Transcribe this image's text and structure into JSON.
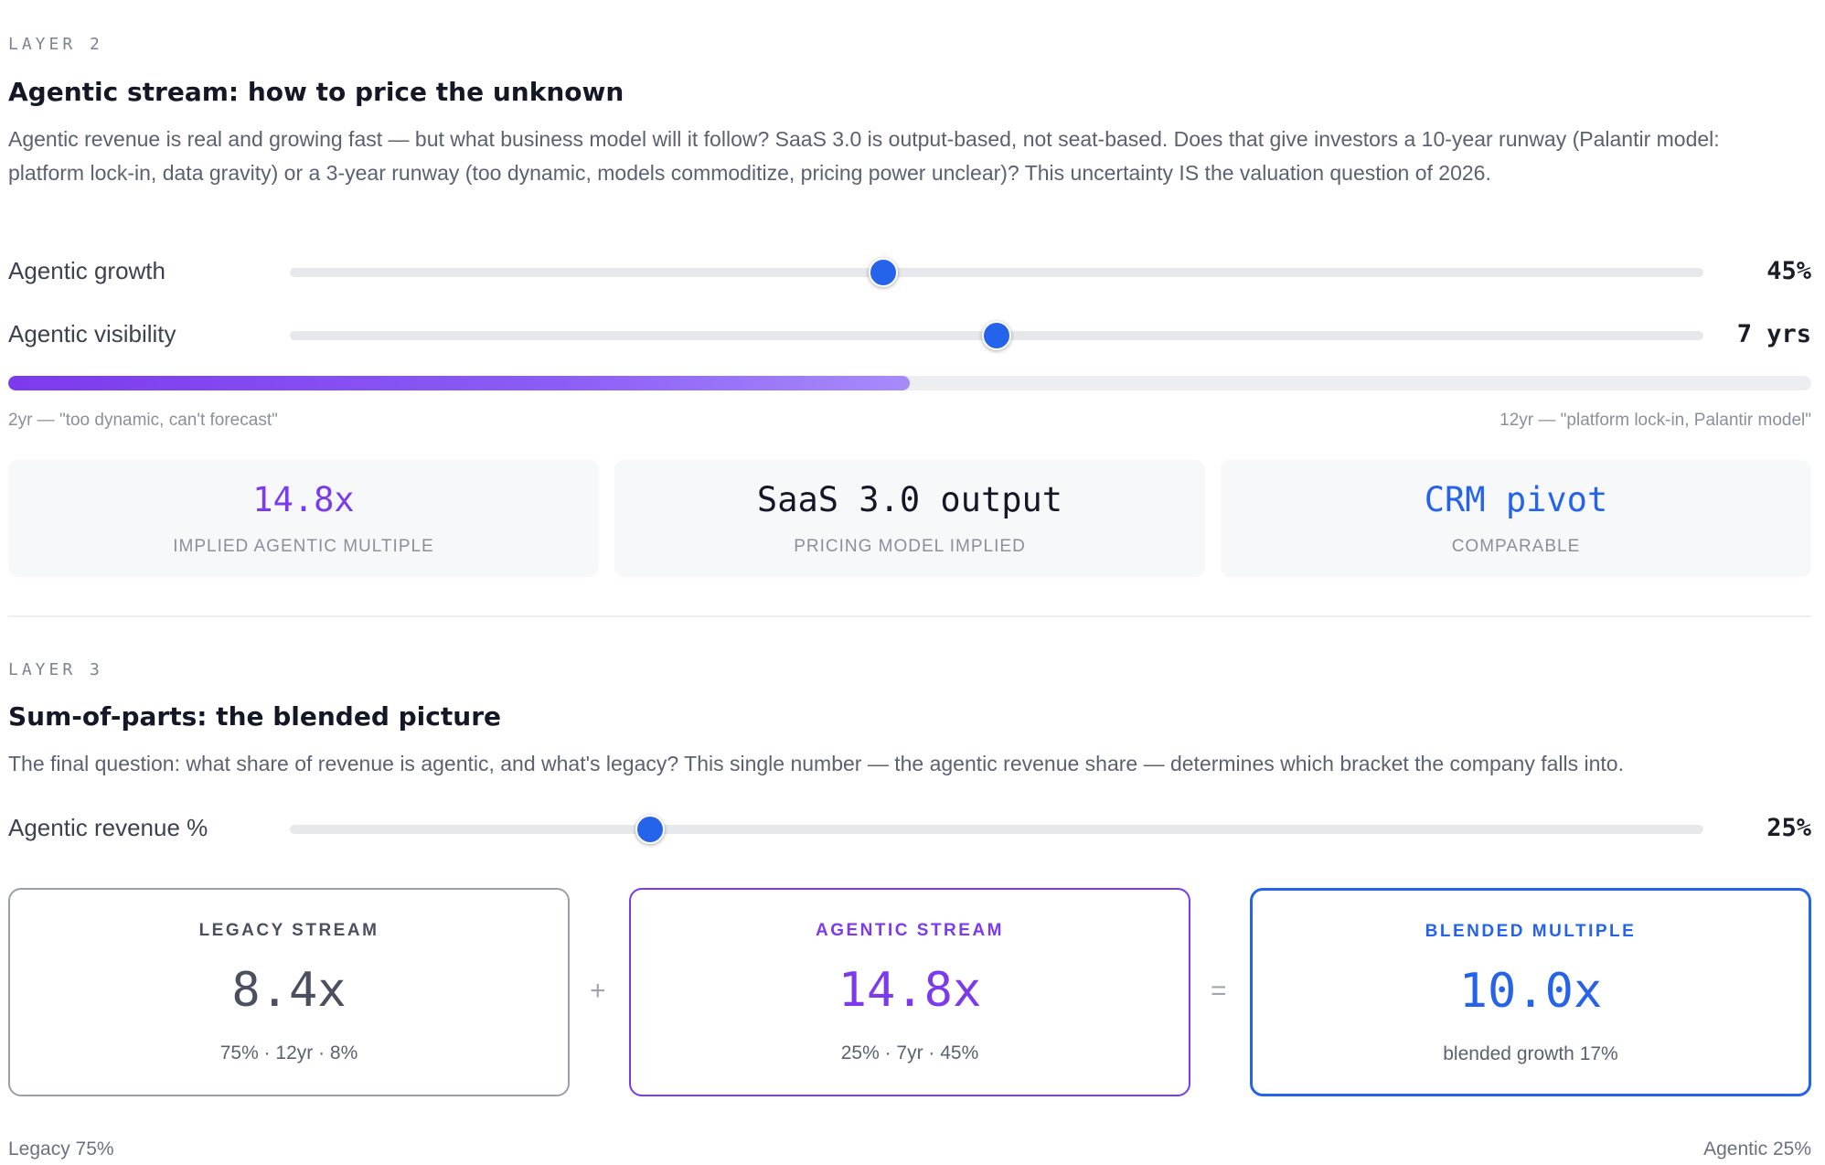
{
  "layer2": {
    "eyebrow": "LAYER 2",
    "title": "Agentic stream: how to price the unknown",
    "description": "Agentic revenue is real and growing fast — but what business model will it follow? SaaS 3.0 is output-based, not seat-based. Does that give investors a 10-year runway (Palantir model: platform lock-in, data gravity) or a 3-year runway (too dynamic, models commoditize, pricing power unclear)? This uncertainty IS the valuation question of 2026.",
    "growth_slider": {
      "label": "Agentic growth",
      "value_text": "45%",
      "fraction": 0.42
    },
    "visibility_slider": {
      "label": "Agentic visibility",
      "value_text": "7 yrs",
      "fraction": 0.5
    },
    "visibility_bar": {
      "fraction": 0.5
    },
    "range_min": "2yr — \"too dynamic, can't forecast\"",
    "range_max": "12yr — \"platform lock-in, Palantir model\"",
    "metrics": [
      {
        "value": "14.8x",
        "caption": "IMPLIED AGENTIC MULTIPLE",
        "color": "#7c3aed"
      },
      {
        "value": "SaaS 3.0 output",
        "caption": "PRICING MODEL IMPLIED",
        "color": "#141826"
      },
      {
        "value": "CRM pivot",
        "caption": "COMPARABLE",
        "color": "#2563eb"
      }
    ]
  },
  "layer3": {
    "eyebrow": "LAYER 3",
    "title": "Sum-of-parts: the blended picture",
    "description": "The final question: what share of revenue is agentic, and what's legacy? This single number — the agentic revenue share — determines which bracket the company falls into.",
    "revenue_slider": {
      "label": "Agentic revenue %",
      "value_text": "25%",
      "fraction": 0.255
    },
    "legacy": {
      "title": "LEGACY STREAM",
      "value": "8.4x",
      "sub": "75% · 12yr · 8%",
      "border": "#9aa0ab",
      "color": "#4b5060"
    },
    "plus": "+",
    "agentic": {
      "title": "AGENTIC STREAM",
      "value": "14.8x",
      "sub": "25% · 7yr · 45%",
      "border": "#7c3aed",
      "color": "#7c3aed"
    },
    "equals": "=",
    "blended": {
      "title": "BLENDED MULTIPLE",
      "value": "10.0x",
      "sub": "blended growth 17%",
      "border": "#2563eb",
      "color": "#2563eb"
    },
    "footer_left": "Legacy 75%",
    "footer_right": "Agentic 25%"
  }
}
